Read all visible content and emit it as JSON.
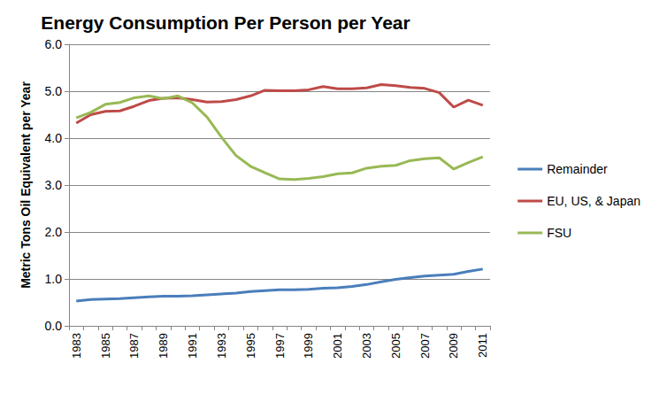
{
  "chart_data": {
    "type": "line",
    "title": "Energy Consumption Per Person per Year",
    "y_label": "Metric Tons Oil Equivalent per Year",
    "categories": [
      "1983",
      null,
      "1985",
      null,
      "1987",
      null,
      "1989",
      null,
      "1991",
      null,
      "1993",
      null,
      "1995",
      null,
      "1997",
      null,
      "1999",
      null,
      "2001",
      null,
      "2003",
      null,
      "2005",
      null,
      "2007",
      null,
      "2009",
      null,
      "2011"
    ],
    "series": [
      {
        "name": "Remainder",
        "color": "#4a7ebb",
        "values": [
          0.53,
          0.56,
          0.57,
          0.58,
          0.6,
          0.62,
          0.63,
          0.63,
          0.64,
          0.66,
          0.68,
          0.7,
          0.73,
          0.75,
          0.77,
          0.77,
          0.78,
          0.8,
          0.81,
          0.84,
          0.88,
          0.94,
          0.99,
          1.03,
          1.06,
          1.08,
          1.1,
          1.16,
          1.21
        ]
      },
      {
        "name": "EU, US, & Japan",
        "color": "#be4b48",
        "values": [
          4.32,
          4.5,
          4.57,
          4.58,
          4.68,
          4.8,
          4.85,
          4.86,
          4.82,
          4.77,
          4.78,
          4.82,
          4.9,
          5.02,
          5.01,
          5.01,
          5.03,
          5.1,
          5.05,
          5.05,
          5.07,
          5.14,
          5.12,
          5.08,
          5.06,
          4.97,
          4.66,
          4.81,
          4.7
        ]
      },
      {
        "name": "FSU",
        "color": "#98b954",
        "values": [
          4.43,
          4.55,
          4.72,
          4.76,
          4.86,
          4.9,
          4.84,
          4.9,
          4.75,
          4.45,
          4.02,
          3.63,
          3.4,
          3.26,
          3.13,
          3.12,
          3.14,
          3.18,
          3.24,
          3.26,
          3.36,
          3.4,
          3.42,
          3.52,
          3.56,
          3.58,
          3.34,
          3.48,
          3.6
        ]
      }
    ],
    "ylim": [
      0,
      6
    ],
    "yticks": [
      {
        "value": 0,
        "label": "0.0"
      },
      {
        "value": 1,
        "label": "1.0"
      },
      {
        "value": 2,
        "label": "2.0"
      },
      {
        "value": 3,
        "label": "3.0"
      },
      {
        "value": 4,
        "label": "4.0"
      },
      {
        "value": 5,
        "label": "5.0"
      },
      {
        "value": 6,
        "label": "6.0"
      }
    ],
    "grid": true,
    "legend": "right"
  }
}
